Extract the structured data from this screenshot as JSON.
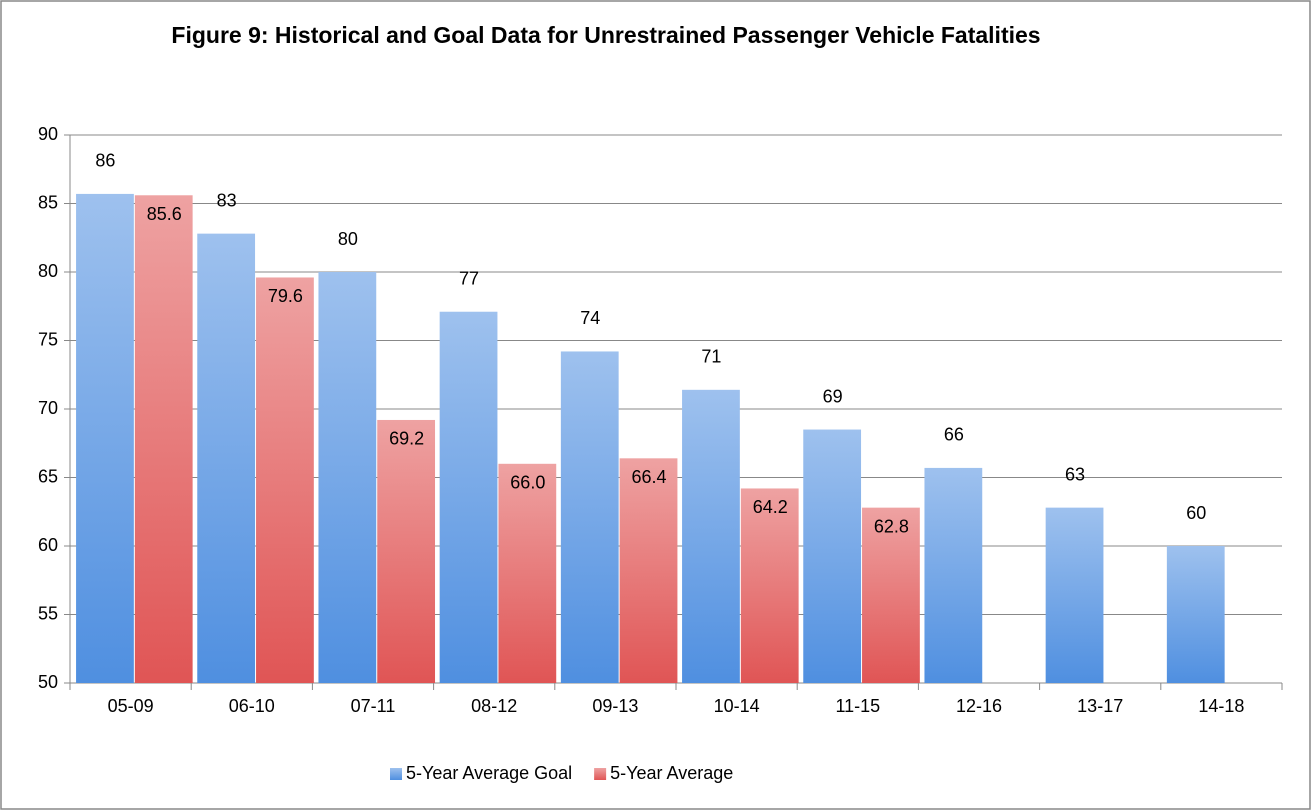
{
  "chart_data": {
    "type": "bar",
    "title": "Figure 9: Historical and Goal Data for Unrestrained Passenger Vehicle Fatalities",
    "categories": [
      "05-09",
      "06-10",
      "07-11",
      "08-12",
      "09-13",
      "10-14",
      "11-15",
      "12-16",
      "13-17",
      "14-18"
    ],
    "series": [
      {
        "name": "5-Year Average Goal",
        "color": "#4f8fe0",
        "values": [
          85.7,
          82.8,
          80.0,
          77.1,
          74.2,
          71.4,
          68.5,
          65.7,
          62.8,
          60.0
        ],
        "value_labels": [
          "86",
          "83",
          "80",
          "77",
          "74",
          "71",
          "69",
          "66",
          "63",
          "60"
        ]
      },
      {
        "name": "5-Year Average",
        "color": "#e05555",
        "values": [
          85.6,
          79.6,
          69.2,
          66.0,
          66.4,
          64.2,
          62.8,
          null,
          null,
          null
        ],
        "value_labels": [
          "85.6",
          "79.6",
          "69.2",
          "66.0",
          "66.4",
          "64.2",
          "62.8",
          null,
          null,
          null
        ]
      }
    ],
    "ylim": [
      50,
      90
    ],
    "yticks": [
      50,
      55,
      60,
      65,
      70,
      75,
      80,
      85,
      90
    ],
    "grid": true,
    "legend": "bottom"
  }
}
